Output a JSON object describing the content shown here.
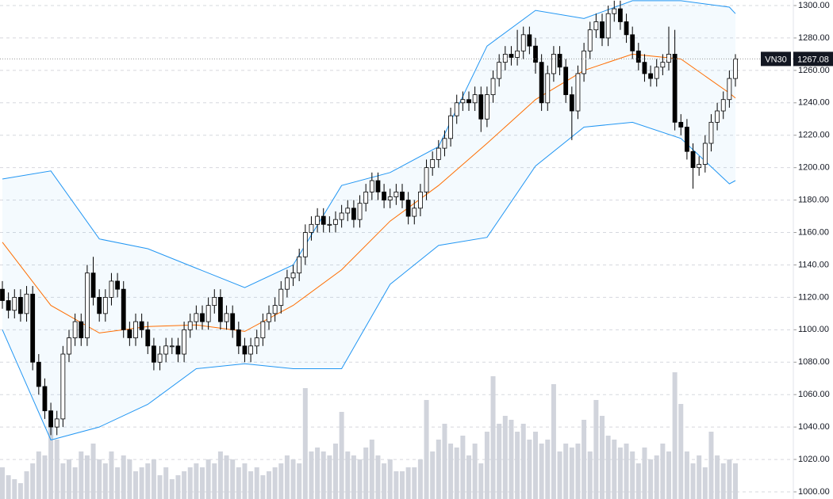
{
  "chart_data": {
    "type": "candlestick",
    "symbol": "VN30",
    "last_value": 1267.08,
    "ylim": [
      1000,
      1300
    ],
    "yticks": [
      {
        "value": 1000,
        "label": "1000.00"
      },
      {
        "value": 1020,
        "label": "1020.00"
      },
      {
        "value": 1040,
        "label": "1040.00"
      },
      {
        "value": 1060,
        "label": "1060.00"
      },
      {
        "value": 1080,
        "label": "1080.00"
      },
      {
        "value": 1100,
        "label": "1100.00"
      },
      {
        "value": 1120,
        "label": "1120.00"
      },
      {
        "value": 1140,
        "label": "1140.00"
      },
      {
        "value": 1160,
        "label": "1160.00"
      },
      {
        "value": 1180,
        "label": "1180.00"
      },
      {
        "value": 1200,
        "label": "1200.00"
      },
      {
        "value": 1220,
        "label": "1220.00"
      },
      {
        "value": 1240,
        "label": "1240.00"
      },
      {
        "value": 1260,
        "label": "1260.00"
      },
      {
        "value": 1280,
        "label": "1280.00"
      },
      {
        "value": 1300,
        "label": "1300.00"
      }
    ],
    "grid": true,
    "up_color": "#ffffff",
    "down_color": "#000000",
    "volume_color": "#d1d4dc",
    "volume_ylim": [
      0,
      160
    ],
    "open": [
      1125,
      1118,
      1112,
      1120,
      1110,
      1122,
      1080,
      1065,
      1050,
      1040,
      1045,
      1085,
      1095,
      1105,
      1095,
      1135,
      1120,
      1110,
      1120,
      1130,
      1125,
      1100,
      1095,
      1105,
      1100,
      1090,
      1080,
      1085,
      1090,
      1090,
      1085,
      1100,
      1105,
      1110,
      1105,
      1115,
      1120,
      1105,
      1110,
      1100,
      1090,
      1085,
      1090,
      1095,
      1105,
      1110,
      1115,
      1125,
      1132,
      1135,
      1145,
      1160,
      1165,
      1170,
      1165,
      1165,
      1168,
      1172,
      1175,
      1168,
      1178,
      1185,
      1192,
      1185,
      1180,
      1182,
      1185,
      1180,
      1170,
      1175,
      1185,
      1200,
      1205,
      1212,
      1218,
      1232,
      1240,
      1242,
      1240,
      1245,
      1230,
      1245,
      1255,
      1265,
      1270,
      1268,
      1272,
      1282,
      1275,
      1265,
      1240,
      1258,
      1270,
      1262,
      1245,
      1235,
      1258,
      1272,
      1285,
      1290,
      1280,
      1295,
      1298,
      1290,
      1282,
      1272,
      1265,
      1258,
      1255,
      1262,
      1265,
      1270,
      1228,
      1225,
      1210,
      1200,
      1202,
      1215,
      1228,
      1235,
      1242,
      1255
    ],
    "high": [
      1130,
      1123,
      1125,
      1125,
      1127,
      1127,
      1085,
      1070,
      1055,
      1050,
      1090,
      1100,
      1110,
      1110,
      1140,
      1145,
      1125,
      1125,
      1135,
      1135,
      1130,
      1105,
      1110,
      1110,
      1105,
      1095,
      1090,
      1095,
      1095,
      1095,
      1105,
      1110,
      1115,
      1115,
      1120,
      1125,
      1125,
      1115,
      1115,
      1105,
      1095,
      1095,
      1100,
      1110,
      1115,
      1120,
      1130,
      1137,
      1140,
      1150,
      1165,
      1170,
      1175,
      1175,
      1170,
      1173,
      1177,
      1180,
      1180,
      1183,
      1190,
      1197,
      1197,
      1190,
      1187,
      1190,
      1190,
      1185,
      1180,
      1190,
      1205,
      1210,
      1217,
      1223,
      1237,
      1245,
      1247,
      1247,
      1250,
      1250,
      1250,
      1260,
      1270,
      1275,
      1275,
      1285,
      1287,
      1287,
      1280,
      1270,
      1263,
      1275,
      1275,
      1267,
      1250,
      1263,
      1277,
      1290,
      1295,
      1295,
      1300,
      1303,
      1303,
      1295,
      1287,
      1277,
      1270,
      1263,
      1267,
      1270,
      1287,
      1285,
      1233,
      1230,
      1215,
      1207,
      1220,
      1233,
      1240,
      1247,
      1260,
      1270
    ],
    "low": [
      1113,
      1107,
      1107,
      1105,
      1105,
      1075,
      1060,
      1045,
      1035,
      1035,
      1040,
      1080,
      1090,
      1090,
      1090,
      1115,
      1105,
      1105,
      1115,
      1120,
      1095,
      1090,
      1090,
      1095,
      1085,
      1075,
      1075,
      1080,
      1085,
      1080,
      1080,
      1095,
      1100,
      1100,
      1100,
      1110,
      1100,
      1100,
      1095,
      1085,
      1080,
      1080,
      1085,
      1090,
      1100,
      1105,
      1110,
      1120,
      1127,
      1130,
      1140,
      1155,
      1160,
      1160,
      1160,
      1160,
      1163,
      1167,
      1163,
      1163,
      1173,
      1180,
      1180,
      1175,
      1175,
      1177,
      1175,
      1165,
      1165,
      1170,
      1180,
      1195,
      1200,
      1207,
      1213,
      1227,
      1235,
      1235,
      1235,
      1222,
      1225,
      1240,
      1250,
      1260,
      1263,
      1263,
      1267,
      1270,
      1258,
      1235,
      1235,
      1253,
      1257,
      1240,
      1217,
      1230,
      1253,
      1267,
      1280,
      1275,
      1275,
      1290,
      1285,
      1277,
      1267,
      1260,
      1253,
      1250,
      1250,
      1257,
      1260,
      1223,
      1220,
      1205,
      1187,
      1195,
      1197,
      1210,
      1223,
      1230,
      1237,
      1250
    ],
    "close": [
      1118,
      1112,
      1120,
      1110,
      1122,
      1080,
      1065,
      1050,
      1040,
      1045,
      1085,
      1095,
      1105,
      1095,
      1135,
      1120,
      1110,
      1120,
      1130,
      1125,
      1100,
      1095,
      1105,
      1100,
      1090,
      1080,
      1085,
      1090,
      1090,
      1085,
      1100,
      1105,
      1110,
      1105,
      1115,
      1120,
      1105,
      1110,
      1100,
      1090,
      1085,
      1090,
      1095,
      1105,
      1110,
      1115,
      1125,
      1132,
      1135,
      1145,
      1160,
      1165,
      1170,
      1165,
      1165,
      1168,
      1172,
      1175,
      1168,
      1178,
      1185,
      1192,
      1185,
      1180,
      1182,
      1185,
      1180,
      1170,
      1175,
      1185,
      1200,
      1205,
      1212,
      1218,
      1232,
      1240,
      1242,
      1240,
      1245,
      1230,
      1245,
      1255,
      1265,
      1270,
      1268,
      1272,
      1282,
      1275,
      1265,
      1240,
      1258,
      1270,
      1262,
      1245,
      1235,
      1258,
      1272,
      1285,
      1290,
      1280,
      1295,
      1298,
      1290,
      1282,
      1272,
      1265,
      1258,
      1255,
      1262,
      1265,
      1270,
      1228,
      1225,
      1210,
      1200,
      1202,
      1215,
      1228,
      1235,
      1242,
      1255,
      1267.08
    ],
    "volume": [
      40,
      30,
      25,
      20,
      35,
      45,
      60,
      55,
      90,
      75,
      45,
      50,
      40,
      60,
      55,
      70,
      50,
      45,
      60,
      40,
      55,
      50,
      35,
      40,
      45,
      50,
      30,
      40,
      25,
      30,
      35,
      40,
      45,
      40,
      50,
      45,
      60,
      55,
      50,
      40,
      45,
      35,
      40,
      30,
      35,
      40,
      45,
      55,
      50,
      45,
      140,
      60,
      65,
      60,
      55,
      70,
      110,
      60,
      55,
      50,
      65,
      75,
      55,
      45,
      50,
      35,
      35,
      40,
      40,
      50,
      125,
      60,
      75,
      95,
      70,
      65,
      80,
      55,
      70,
      45,
      85,
      155,
      95,
      105,
      100,
      85,
      95,
      75,
      85,
      70,
      75,
      145,
      60,
      70,
      65,
      70,
      100,
      60,
      125,
      105,
      80,
      75,
      65,
      70,
      60,
      45,
      65,
      50,
      55,
      70,
      60,
      160,
      120,
      60,
      45,
      55,
      40,
      85,
      55,
      45,
      50,
      45
    ],
    "bands": {
      "color": "#2196f3",
      "middle_color": "#ff6d00",
      "x": [
        0,
        8,
        16,
        24,
        32,
        40,
        48,
        56,
        64,
        72,
        80,
        88,
        96,
        104,
        112,
        120,
        121
      ],
      "upper": [
        1193,
        1198,
        1156,
        1150,
        1138,
        1126,
        1140,
        1189,
        1197,
        1213,
        1275,
        1297,
        1292,
        1303,
        1303,
        1299,
        1295
      ],
      "middle": [
        1154,
        1115,
        1098,
        1102,
        1103,
        1099,
        1115,
        1137,
        1167,
        1189,
        1215,
        1242,
        1260,
        1270,
        1267,
        1246,
        1243
      ],
      "lower": [
        1100,
        1032,
        1040,
        1054,
        1076,
        1079,
        1076,
        1076,
        1128,
        1152,
        1157,
        1201,
        1225,
        1228,
        1218,
        1190,
        1192
      ]
    }
  }
}
